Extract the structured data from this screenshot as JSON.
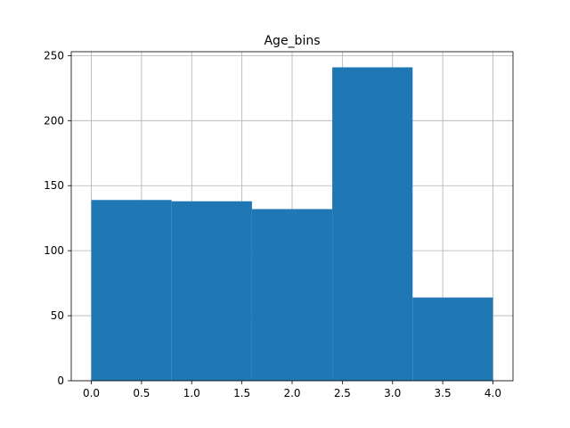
{
  "chart_data": {
    "type": "bar",
    "title": "Age_bins",
    "xlabel": "",
    "ylabel": "",
    "bins": [
      {
        "start": 0.0,
        "end": 0.8,
        "count": 139
      },
      {
        "start": 0.8,
        "end": 1.6,
        "count": 138
      },
      {
        "start": 1.6,
        "end": 2.4,
        "count": 132
      },
      {
        "start": 2.4,
        "end": 3.2,
        "count": 241
      },
      {
        "start": 3.2,
        "end": 4.0,
        "count": 64
      }
    ],
    "xlim": [
      -0.2,
      4.2
    ],
    "ylim": [
      0,
      253
    ],
    "xticks": [
      "0.0",
      "0.5",
      "1.0",
      "1.5",
      "2.0",
      "2.5",
      "3.0",
      "3.5",
      "4.0"
    ],
    "yticks": [
      "0",
      "50",
      "100",
      "150",
      "200",
      "250"
    ],
    "grid": true,
    "bar_color": "#1f77b4"
  }
}
